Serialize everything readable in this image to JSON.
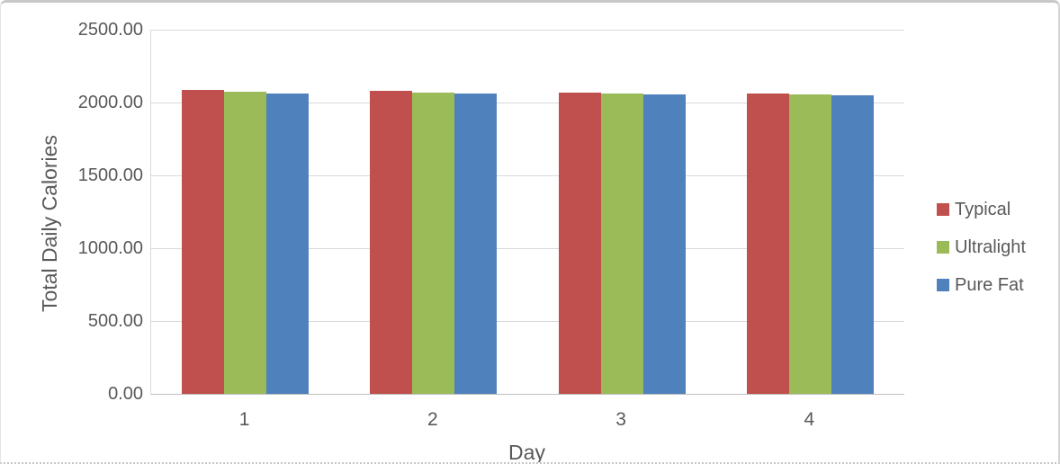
{
  "chart_data": {
    "type": "bar",
    "title": "",
    "categories": [
      "1",
      "2",
      "3",
      "4"
    ],
    "series": [
      {
        "name": "Typical",
        "color": "#c0504d",
        "values": [
          2088,
          2082,
          2071,
          2062
        ]
      },
      {
        "name": "Ultralight",
        "color": "#9bbb59",
        "values": [
          2077,
          2069,
          2064,
          2058
        ]
      },
      {
        "name": "Pure Fat",
        "color": "#4f81bd",
        "values": [
          2064,
          2059,
          2053,
          2052
        ]
      }
    ],
    "xlabel": "Day",
    "ylabel": "Total Daily Calories",
    "ylim": [
      0,
      2500
    ],
    "ytick_step": 500,
    "ytick_labels": [
      "0.00",
      "500.00",
      "1000.00",
      "1500.00",
      "2000.00",
      "2500.00"
    ],
    "grid": "horizontal",
    "legend_position": "right"
  },
  "styles": {
    "text_color": "#595959",
    "gridline_color": "#d9d9d9",
    "axis_line_color": "#bfbfbf",
    "frame_border_color": "#c8c8c8",
    "background": "#ffffff"
  }
}
